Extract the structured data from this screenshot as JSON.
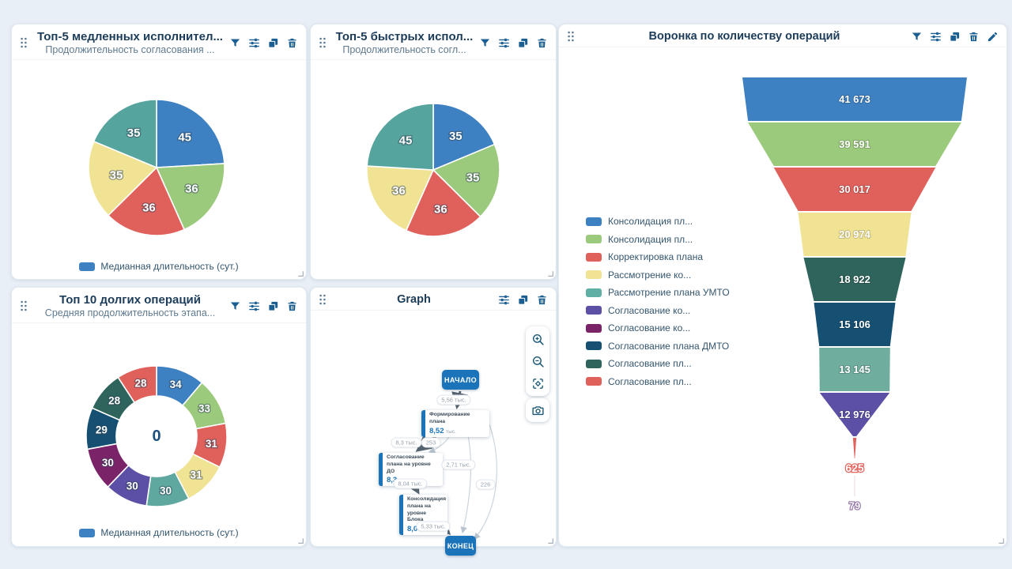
{
  "palette": {
    "blue": "#3E81C3",
    "green": "#9CCA7C",
    "red": "#E0615B",
    "yellow": "#F1E394",
    "teal": "#55A49D",
    "seafoam": "#5FA8A0",
    "funnel_seafoam": "#6FAE9F",
    "purple": "#5B50A5",
    "magenta": "#7B2369",
    "navy": "#155073",
    "darkteal": "#2F645C",
    "icon": "#1A5E92",
    "graph_blue": "#1B74BA",
    "tail_violet": "#8D6CA3"
  },
  "widgets": {
    "slow": {
      "title": "Топ-5 медленных исполнител...",
      "subtitle": "Продолжительность согласования ...",
      "legend_label": "Медианная длительность (сут.)",
      "slices": [
        {
          "label": "45",
          "value": 45,
          "color": "#3E81C3"
        },
        {
          "label": "36",
          "value": 36,
          "color": "#9CCA7C"
        },
        {
          "label": "36",
          "value": 36,
          "color": "#E0615B"
        },
        {
          "label": "35",
          "value": 35,
          "color": "#F1E394"
        },
        {
          "label": "35",
          "value": 35,
          "color": "#55A49D"
        }
      ]
    },
    "fast": {
      "title": "Топ-5 быстрых испол...",
      "subtitle": "Продолжительность согл...",
      "slices": [
        {
          "label": "35",
          "value": 35,
          "color": "#3E81C3"
        },
        {
          "label": "35",
          "value": 35,
          "color": "#9CCA7C"
        },
        {
          "label": "36",
          "value": 36,
          "color": "#E0615B"
        },
        {
          "label": "36",
          "value": 36,
          "color": "#F1E394"
        },
        {
          "label": "45",
          "value": 45,
          "color": "#55A49D"
        }
      ]
    },
    "funnel": {
      "title": "Воронка по количеству операций",
      "legend": [
        {
          "label": "Консолидация пл...",
          "color": "#3E81C3"
        },
        {
          "label": "Консолидация пл...",
          "color": "#9CCA7C"
        },
        {
          "label": "Корректировка плана",
          "color": "#E0615B"
        },
        {
          "label": "Рассмотрение ко...",
          "color": "#F1E394"
        },
        {
          "label": "Рассмотрение плана УМТО",
          "color": "#5FAFA4"
        },
        {
          "label": "Согласование ко...",
          "color": "#5B50A5"
        },
        {
          "label": "Согласование ко...",
          "color": "#7B2369"
        },
        {
          "label": "Согласование плана ДМТО",
          "color": "#155073"
        },
        {
          "label": "Согласование пл...",
          "color": "#2F645C"
        },
        {
          "label": "Согласование пл...",
          "color": "#E0615B"
        }
      ],
      "segments": [
        {
          "label": "41 673",
          "value": 41673,
          "color": "#3E81C3"
        },
        {
          "label": "39 591",
          "value": 39591,
          "color": "#9CCA7C"
        },
        {
          "label": "30 017",
          "value": 30017,
          "color": "#E0615B"
        },
        {
          "label": "20 974",
          "value": 20974,
          "color": "#F1E394"
        },
        {
          "label": "18 922",
          "value": 18922,
          "color": "#2F645C"
        },
        {
          "label": "15 106",
          "value": 15106,
          "color": "#155073"
        },
        {
          "label": "13 145",
          "value": 13145,
          "color": "#6FAE9F"
        },
        {
          "label": "12 976",
          "value": 12976,
          "color": "#5B50A5"
        }
      ],
      "tail": [
        {
          "label": "625",
          "value": 625,
          "color": "#E0615B"
        },
        {
          "label": "79",
          "value": 79,
          "color": "#8D6CA3"
        }
      ]
    },
    "long_ops": {
      "title": "Топ 10 долгих операций",
      "subtitle": "Средняя продолжительность этапа...",
      "legend_label": "Медианная длительность (сут.)",
      "center_label": "0",
      "slices": [
        {
          "label": "34",
          "value": 34,
          "color": "#3E81C3"
        },
        {
          "label": "33",
          "value": 33,
          "color": "#9CCA7C"
        },
        {
          "label": "31",
          "value": 31,
          "color": "#E0615B"
        },
        {
          "label": "31",
          "value": 31,
          "color": "#F1E394"
        },
        {
          "label": "30",
          "value": 30,
          "color": "#5FA8A0"
        },
        {
          "label": "30",
          "value": 30,
          "color": "#5B50A5"
        },
        {
          "label": "30",
          "value": 30,
          "color": "#7B2369"
        },
        {
          "label": "29",
          "value": 29,
          "color": "#155073"
        },
        {
          "label": "28",
          "value": 28,
          "color": "#2F645C"
        },
        {
          "label": "28",
          "value": 28,
          "color": "#E0615B"
        }
      ]
    },
    "graph": {
      "title": "Graph",
      "start_label": "НАЧАЛО",
      "end_label": "КОНЕЦ",
      "unit": "тыс.",
      "nodes": [
        {
          "title": "Формирование плана",
          "value": "8,52"
        },
        {
          "title": "Согласование плана на уровне ДО",
          "value": "8,3"
        },
        {
          "title": "Консолидация плана на уровне Блока",
          "value": "8,04"
        }
      ],
      "edge_labels": [
        "5,56 тыс.",
        "8,3 тыс.",
        "253",
        "2,71 тыс.",
        "8,04 тыс.",
        "226",
        "5,33 тыс."
      ]
    }
  },
  "chart_data": [
    {
      "type": "pie",
      "title": "Топ-5 медленных исполнител...",
      "subtitle": "Продолжительность согласования ...",
      "series_label": "Медианная длительность (сут.)",
      "values": [
        45,
        36,
        36,
        35,
        35
      ]
    },
    {
      "type": "pie",
      "title": "Топ-5 быстрых испол...",
      "subtitle": "Продолжительность согл...",
      "values": [
        35,
        35,
        36,
        36,
        45
      ]
    },
    {
      "type": "funnel",
      "title": "Воронка по количеству операций",
      "categories": [
        "Консолидация пл...",
        "Консолидация пл...",
        "Корректировка плана",
        "Рассмотрение ко...",
        "Рассмотрение плана УМТО",
        "Согласование ко...",
        "Согласование ко...",
        "Согласование плана ДМТО",
        "Согласование пл...",
        "Согласование пл..."
      ],
      "values": [
        41673,
        39591,
        30017,
        20974,
        18922,
        15106,
        13145,
        12976,
        625,
        79
      ],
      "legend_position": "left"
    },
    {
      "type": "pie",
      "subtype": "donut",
      "title": "Топ 10 долгих операций",
      "subtitle": "Средняя продолжительность этапа...",
      "series_label": "Медианная длительность (сут.)",
      "center": 0,
      "values": [
        34,
        33,
        31,
        31,
        30,
        30,
        30,
        29,
        28,
        28
      ]
    },
    {
      "type": "graph",
      "title": "Graph",
      "nodes": [
        "НАЧАЛО",
        "Формирование плана",
        "Согласование плана на уровне ДО",
        "Консолидация плана на уровне Блока",
        "КОНЕЦ"
      ],
      "edge_labels": [
        "5,56 тыс.",
        "8,3 тыс.",
        "253",
        "2,71 тыс.",
        "8,04 тыс.",
        "226",
        "5,33 тыс."
      ]
    }
  ]
}
